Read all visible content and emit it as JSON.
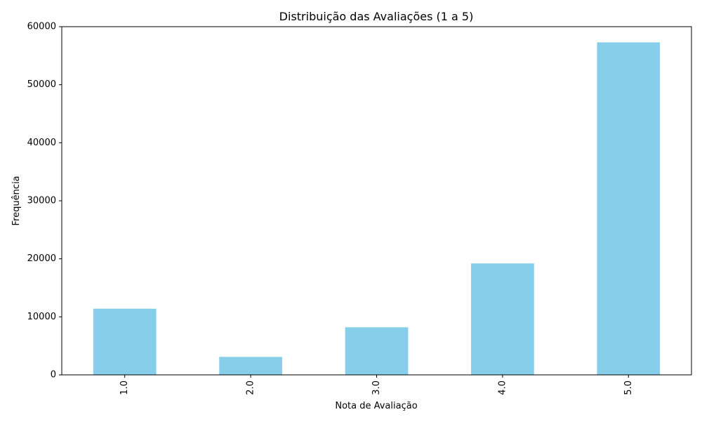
{
  "chart_data": {
    "type": "bar",
    "title": "Distribuição das Avaliações (1 a 5)",
    "xlabel": "Nota de Avaliação",
    "ylabel": "Frequência",
    "categories": [
      "1.0",
      "2.0",
      "3.0",
      "4.0",
      "5.0"
    ],
    "values": [
      11400,
      3100,
      8200,
      19200,
      57300
    ],
    "ylim": [
      0,
      60000
    ],
    "yticks": [
      0,
      10000,
      20000,
      30000,
      40000,
      50000,
      60000
    ],
    "x_tick_rotation": "vertical",
    "grid": false,
    "legend": "none",
    "bar_color": "#87CEEB"
  }
}
